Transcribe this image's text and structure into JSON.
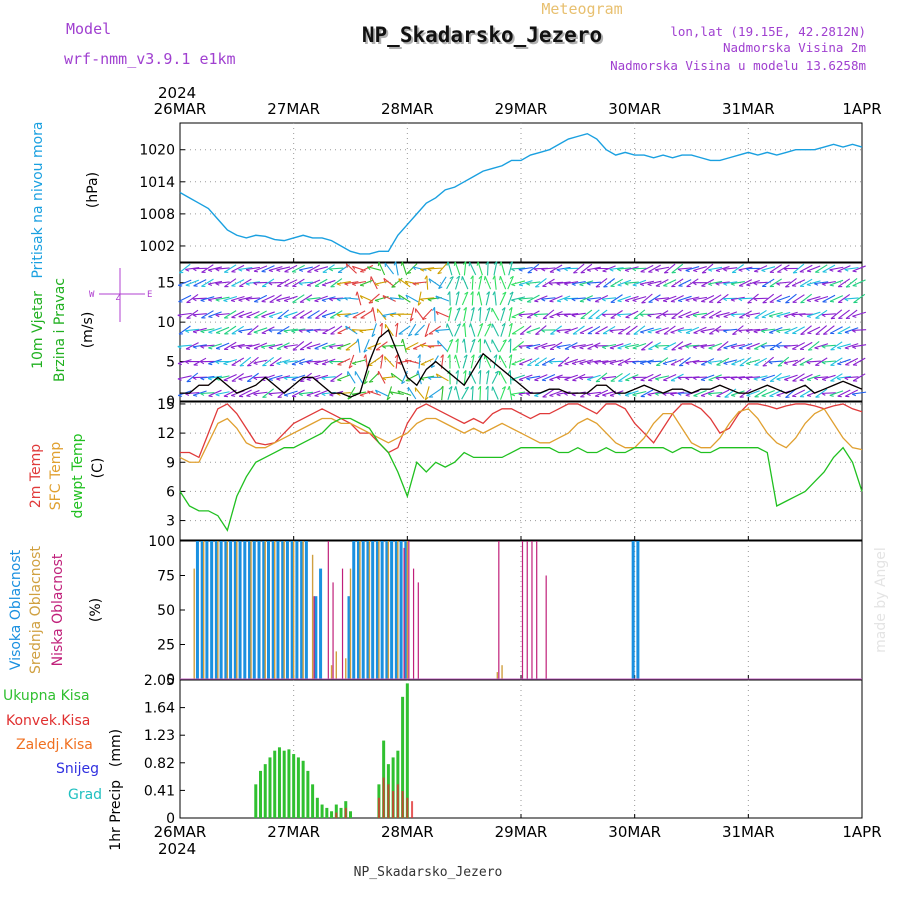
{
  "header": {
    "model_label": "Model",
    "model_name": "wrf-nmm_v3.9.1  e1km",
    "super_title": "Meteogram",
    "station": "NP_Skadarsko_Jezero",
    "lonlat": "lon,lat (19.15E, 42.2812N)",
    "altitude": "Nadmorska Visina 2m",
    "model_altitude": "Nadmorska Visina u modelu 13.6258m",
    "footer_station": "NP_Skadarsko_Jezero",
    "watermark": "made by Angel"
  },
  "colors": {
    "pressure": "#1aa0e0",
    "speed": "#000000",
    "temp2m": "#e03a3a",
    "sfc_temp": "#e0a030",
    "dewpt": "#20c020",
    "cloud_high": "#1a90e0",
    "cloud_mid": "#d0a040",
    "cloud_low": "#c0207a",
    "precip_total": "#30c030",
    "precip_conv": "#e03030",
    "precip_frozen": "#f07020",
    "snow": "#3030e0",
    "hail": "#20c0c0",
    "purple_text": "#a040d0"
  },
  "chart_data": [
    {
      "type": "line",
      "id": "pressure",
      "ylabel": "Pritisak na nivou mora",
      "unit": "(hPa)",
      "ylim": [
        999,
        1025
      ],
      "yticks": [
        1002,
        1008,
        1014,
        1020
      ],
      "x_axis": {
        "year": "2024",
        "tick_labels": [
          "26MAR",
          "27MAR",
          "28MAR",
          "29MAR",
          "30MAR",
          "31MAR",
          "1APR"
        ],
        "hours": [
          0,
          24,
          48,
          72,
          96,
          120,
          144
        ]
      },
      "grid": true,
      "x": [
        0,
        2,
        4,
        6,
        8,
        10,
        12,
        14,
        16,
        18,
        20,
        22,
        24,
        26,
        28,
        30,
        32,
        34,
        36,
        38,
        40,
        42,
        44,
        46,
        48,
        50,
        52,
        54,
        56,
        58,
        60,
        62,
        64,
        66,
        68,
        70,
        72,
        74,
        76,
        78,
        80,
        82,
        84,
        86,
        88,
        90,
        92,
        94,
        96,
        98,
        100,
        102,
        104,
        106,
        108,
        110,
        112,
        114,
        116,
        118,
        120,
        122,
        124,
        126,
        128,
        130,
        132,
        134,
        136,
        138,
        140,
        142,
        144
      ],
      "y": [
        1012,
        1011,
        1010,
        1009,
        1007,
        1005,
        1004,
        1003.5,
        1004,
        1003.8,
        1003.2,
        1003,
        1003.5,
        1004,
        1003.5,
        1003.5,
        1003,
        1002,
        1001,
        1000.5,
        1000.5,
        1001,
        1001,
        1004,
        1006,
        1008,
        1010,
        1011,
        1012.5,
        1013,
        1014,
        1015,
        1016,
        1016.5,
        1017,
        1018,
        1018,
        1019,
        1019.5,
        1020,
        1021,
        1022,
        1022.5,
        1023,
        1022,
        1020,
        1019,
        1019.5,
        1019,
        1019,
        1018.5,
        1019,
        1018.5,
        1019,
        1019,
        1018.5,
        1018,
        1018,
        1018.5,
        1019,
        1019.5,
        1019,
        1019.5,
        1019,
        1019.5,
        1020,
        1020,
        1020,
        1020.5,
        1021,
        1020.5,
        1021,
        1020.5
      ]
    },
    {
      "type": "line",
      "id": "wind",
      "ylabel": "10m Vjetar",
      "ylabel2": "Brzina i Pravac",
      "unit": "(m/s)",
      "ylim": [
        0,
        17.5
      ],
      "yticks": [
        0,
        5,
        10,
        15
      ],
      "compass": [
        "N",
        "E",
        "W",
        "S",
        "Z"
      ],
      "x": [
        0,
        2,
        4,
        6,
        8,
        10,
        12,
        14,
        16,
        18,
        20,
        22,
        24,
        26,
        28,
        30,
        32,
        34,
        36,
        38,
        40,
        42,
        44,
        46,
        48,
        50,
        52,
        54,
        56,
        58,
        60,
        62,
        64,
        66,
        68,
        70,
        72,
        74,
        76,
        78,
        80,
        82,
        84,
        86,
        88,
        90,
        92,
        94,
        96,
        98,
        100,
        102,
        104,
        106,
        108,
        110,
        112,
        114,
        116,
        118,
        120,
        122,
        124,
        126,
        128,
        130,
        132,
        134,
        136,
        138,
        140,
        142,
        144
      ],
      "speed": [
        1,
        1,
        2,
        2,
        3,
        2,
        1,
        1.5,
        2,
        3,
        2,
        1,
        2,
        3,
        3,
        2,
        1,
        1,
        0.5,
        1,
        5,
        8,
        9,
        6,
        3,
        2,
        4,
        5,
        4,
        3,
        2,
        4,
        6,
        5,
        4,
        3,
        2,
        1,
        1,
        1.5,
        1.5,
        1,
        1,
        1,
        2,
        2,
        1,
        1,
        1.5,
        2,
        1.5,
        1,
        1.5,
        1.5,
        1,
        1.5,
        1.5,
        2,
        1.5,
        1,
        1,
        1.5,
        2,
        1.5,
        1,
        1.5,
        2,
        1,
        1.5,
        2,
        2.5,
        2,
        1.5
      ]
    },
    {
      "type": "line",
      "id": "temperature",
      "ylabel": "2m Temp",
      "ylabel2": "SFC Temp",
      "ylabel3": "dewpt Temp",
      "unit": "(C)",
      "ylim": [
        1,
        15.2
      ],
      "yticks": [
        3,
        6,
        9,
        12,
        15
      ],
      "x": [
        0,
        2,
        4,
        6,
        8,
        10,
        12,
        14,
        16,
        18,
        20,
        22,
        24,
        26,
        28,
        30,
        32,
        34,
        36,
        38,
        40,
        42,
        44,
        46,
        48,
        50,
        52,
        54,
        56,
        58,
        60,
        62,
        64,
        66,
        68,
        70,
        72,
        74,
        76,
        78,
        80,
        82,
        84,
        86,
        88,
        90,
        92,
        94,
        96,
        98,
        100,
        102,
        104,
        106,
        108,
        110,
        112,
        114,
        116,
        118,
        120,
        122,
        124,
        126,
        128,
        130,
        132,
        134,
        136,
        138,
        140,
        142,
        144
      ],
      "series": [
        {
          "name": "2m Temp",
          "values": [
            10,
            10,
            9.5,
            12,
            14.5,
            15,
            14,
            12.5,
            11,
            10.8,
            11,
            12,
            13,
            13.5,
            14,
            14.5,
            14,
            13.5,
            13,
            12,
            12,
            11,
            10,
            10.5,
            13,
            14.5,
            15,
            14.5,
            14,
            13.5,
            13,
            13.5,
            13,
            14,
            14.5,
            14.5,
            14,
            13.5,
            14,
            14,
            14.5,
            15,
            15,
            14.5,
            14,
            15,
            15,
            14.5,
            13,
            12,
            11,
            12.5,
            14,
            15,
            15,
            14.5,
            13.5,
            12,
            12.5,
            14,
            15,
            15,
            14.8,
            14.5,
            14.8,
            15,
            15,
            14.8,
            14.5,
            14.8,
            15,
            14.5,
            14.2
          ]
        },
        {
          "name": "SFC Temp",
          "values": [
            9.5,
            9,
            9,
            11,
            13,
            13.5,
            12.5,
            11,
            10.5,
            10.5,
            11,
            11.5,
            12,
            12.5,
            13,
            13.5,
            13.5,
            13,
            13,
            12.5,
            12,
            11.5,
            11,
            11.5,
            12,
            13,
            13.5,
            13.5,
            13,
            12.5,
            12,
            12.5,
            12,
            12.5,
            13,
            12.5,
            12,
            11.5,
            11,
            11,
            11.5,
            12,
            13,
            13.5,
            13,
            12,
            11,
            10.5,
            10.5,
            11.5,
            13,
            14,
            14,
            12.5,
            11,
            10.5,
            10.5,
            11.5,
            13,
            14.2,
            14.5,
            13.5,
            12,
            11,
            10.5,
            11.5,
            13,
            14,
            14.5,
            13,
            11.5,
            10.5,
            10.3
          ]
        },
        {
          "name": "dewpt Temp",
          "values": [
            6,
            4.5,
            4,
            4,
            3.5,
            2,
            5.5,
            7.5,
            9,
            9.5,
            10,
            10.5,
            10.5,
            11,
            11.5,
            12,
            13,
            13.5,
            13.5,
            13,
            12.5,
            11,
            10,
            8,
            5.5,
            9,
            8,
            9,
            8.5,
            9,
            10,
            9.5,
            9.5,
            9.5,
            9.5,
            10,
            10.5,
            10.5,
            10.5,
            10.5,
            10,
            10,
            10.5,
            10,
            10,
            10.5,
            10,
            10,
            10.5,
            10.5,
            10.5,
            10.5,
            10,
            10.5,
            10.5,
            10,
            10,
            10.5,
            10.5,
            10.5,
            10.5,
            10.5,
            10,
            4.5,
            5,
            5.5,
            6,
            7,
            8,
            9.5,
            10.5,
            9,
            6
          ]
        }
      ]
    },
    {
      "type": "bar",
      "id": "cloud",
      "ylabel": "Visoka Oblacnost",
      "ylabel2": "Srednja Oblacnost",
      "ylabel3": "Niska Oblacnost",
      "unit": "(%)",
      "ylim": [
        0,
        100
      ],
      "yticks": [
        0,
        25,
        50,
        75,
        100
      ],
      "series": [
        {
          "name": "Visoka Oblacnost",
          "hours": [
            4,
            5,
            6,
            7,
            8,
            9,
            10,
            11,
            12,
            13,
            14,
            15,
            16,
            17,
            18,
            19,
            20,
            21,
            22,
            23,
            24,
            25,
            26,
            27,
            29,
            30,
            36,
            37,
            38,
            39,
            40,
            41,
            42,
            43,
            44,
            45,
            46,
            47,
            48,
            96,
            97
          ],
          "values": [
            100,
            100,
            100,
            100,
            100,
            100,
            100,
            100,
            100,
            100,
            100,
            100,
            100,
            100,
            100,
            100,
            100,
            100,
            100,
            100,
            100,
            100,
            100,
            100,
            60,
            80,
            60,
            100,
            100,
            100,
            100,
            100,
            100,
            100,
            100,
            100,
            100,
            100,
            100,
            100,
            100
          ]
        },
        {
          "name": "Srednja Oblacnost",
          "hours": [
            3,
            5,
            8,
            10,
            12,
            15,
            18,
            20,
            22,
            24,
            26,
            28,
            32,
            33,
            35,
            36,
            38,
            40,
            42,
            44,
            46,
            48,
            67,
            68
          ],
          "values": [
            80,
            100,
            100,
            100,
            100,
            100,
            100,
            100,
            100,
            100,
            100,
            90,
            10,
            20,
            15,
            80,
            100,
            100,
            100,
            100,
            100,
            100,
            5,
            10
          ]
        },
        {
          "name": "Niska Oblacnost",
          "hours": [
            28,
            31,
            32,
            34,
            47,
            48,
            49,
            50,
            67,
            72,
            73,
            74,
            75,
            77
          ],
          "values": [
            60,
            100,
            70,
            80,
            95,
            100,
            80,
            70,
            100,
            100,
            100,
            100,
            100,
            75
          ]
        }
      ]
    },
    {
      "type": "bar",
      "id": "precip",
      "ylabel": "1hr Precip",
      "unit": "(mm)",
      "ylim": [
        0,
        2.05
      ],
      "yticks": [
        0,
        0.41,
        0.82,
        1.23,
        1.64,
        2.05
      ],
      "legend": [
        "Ukupna Kisa",
        "Konvek.Kisa",
        "Zaledj.Kisa",
        "Snijeg",
        "Grad"
      ],
      "series": [
        {
          "name": "Ukupna Kisa",
          "hours": [
            16,
            17,
            18,
            19,
            20,
            21,
            22,
            23,
            24,
            25,
            26,
            27,
            28,
            29,
            30,
            31,
            32,
            33,
            34,
            35,
            36,
            42,
            43,
            44,
            45,
            46,
            47,
            48
          ],
          "values": [
            0.5,
            0.7,
            0.8,
            0.9,
            1.0,
            1.05,
            1.0,
            1.02,
            0.95,
            0.9,
            0.85,
            0.7,
            0.5,
            0.3,
            0.2,
            0.15,
            0.1,
            0.2,
            0.15,
            0.25,
            0.1,
            0.5,
            1.15,
            0.8,
            0.9,
            1.0,
            1.8,
            2.0
          ]
        },
        {
          "name": "Konvek.Kisa",
          "hours": [
            33,
            35,
            42,
            43,
            44,
            45,
            46,
            47,
            48,
            49
          ],
          "values": [
            0.08,
            0.15,
            0.3,
            0.6,
            0.5,
            0.4,
            0.5,
            0.4,
            0.3,
            0.25
          ]
        }
      ]
    }
  ]
}
